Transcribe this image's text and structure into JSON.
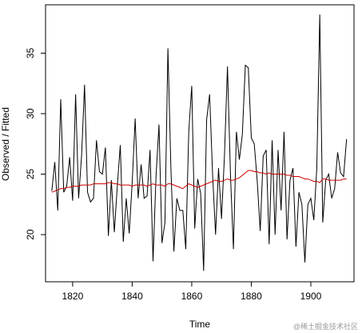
{
  "chart_data": {
    "type": "line",
    "xlabel": "Time",
    "ylabel": "Observed / Fitted",
    "watermark": "@稀土掘金技术社区",
    "x": [
      1813,
      1814,
      1815,
      1816,
      1817,
      1818,
      1819,
      1820,
      1821,
      1822,
      1823,
      1824,
      1825,
      1826,
      1827,
      1828,
      1829,
      1830,
      1831,
      1832,
      1833,
      1834,
      1835,
      1836,
      1837,
      1838,
      1839,
      1840,
      1841,
      1842,
      1843,
      1844,
      1845,
      1846,
      1847,
      1848,
      1849,
      1850,
      1851,
      1852,
      1853,
      1854,
      1855,
      1856,
      1857,
      1858,
      1859,
      1860,
      1861,
      1862,
      1863,
      1864,
      1865,
      1866,
      1867,
      1868,
      1869,
      1870,
      1871,
      1872,
      1873,
      1874,
      1875,
      1876,
      1877,
      1878,
      1879,
      1880,
      1881,
      1882,
      1883,
      1884,
      1885,
      1886,
      1887,
      1888,
      1889,
      1890,
      1891,
      1892,
      1893,
      1894,
      1895,
      1896,
      1897,
      1898,
      1899,
      1900,
      1901,
      1902,
      1903,
      1904,
      1905,
      1906,
      1907,
      1908,
      1909,
      1910,
      1911,
      1912
    ],
    "series": [
      {
        "color": "#000000",
        "values": [
          23.6,
          26.0,
          22.0,
          31.2,
          23.5,
          24.0,
          26.4,
          22.8,
          31.6,
          23.0,
          26.5,
          32.4,
          23.5,
          22.7,
          23.0,
          27.8,
          25.2,
          25.0,
          27.2,
          19.9,
          24.5,
          20.2,
          24.0,
          27.4,
          19.4,
          23.0,
          20.1,
          24.3,
          29.6,
          23.0,
          25.8,
          23.0,
          23.2,
          27.0,
          17.8,
          24.8,
          29.1,
          19.3,
          21.0,
          35.4,
          25.5,
          18.6,
          23.0,
          22.0,
          22.0,
          18.8,
          28.5,
          32.3,
          20.5,
          24.6,
          23.4,
          17.0,
          29.5,
          31.6,
          25.0,
          20.0,
          25.5,
          21.3,
          26.6,
          33.9,
          25.0,
          18.8,
          28.5,
          26.2,
          28.3,
          34.0,
          33.8,
          28.0,
          27.5,
          24.4,
          20.3,
          26.5,
          27.0,
          19.2,
          27.8,
          20.0,
          27.0,
          22.0,
          28.5,
          19.6,
          24.5,
          25.5,
          19.0,
          23.5,
          22.5,
          17.7,
          22.5,
          23.0,
          21.2,
          25.5,
          38.2,
          21.0,
          24.5,
          25.0,
          23.0,
          23.8,
          26.8,
          25.1,
          24.8,
          27.9
        ]
      },
      {
        "color": "#cc0000",
        "values": [
          23.5,
          23.6,
          23.7,
          23.8,
          23.8,
          23.9,
          23.9,
          24.0,
          24.0,
          24.0,
          24.1,
          24.1,
          24.1,
          24.1,
          24.2,
          24.2,
          24.2,
          24.2,
          24.2,
          24.3,
          24.3,
          24.2,
          24.2,
          24.1,
          24.1,
          24.1,
          24.1,
          24.0,
          24.1,
          24.1,
          24.1,
          24.1,
          24.0,
          24.1,
          24.2,
          24.1,
          24.1,
          24.1,
          24.0,
          24.2,
          24.2,
          24.1,
          24.0,
          23.9,
          23.8,
          24.0,
          24.2,
          24.1,
          24.0,
          23.9,
          24.0,
          24.1,
          24.2,
          24.3,
          24.4,
          24.5,
          24.4,
          24.4,
          24.5,
          24.6,
          24.5,
          24.5,
          24.6,
          24.7,
          24.9,
          25.1,
          25.3,
          25.3,
          25.2,
          25.2,
          25.1,
          25.1,
          25.0,
          25.1,
          25.0,
          25.0,
          25.0,
          25.0,
          25.0,
          24.9,
          24.9,
          24.8,
          24.8,
          24.8,
          24.7,
          24.6,
          24.6,
          24.5,
          24.4,
          24.4,
          24.3,
          24.6,
          24.6,
          24.5,
          24.5,
          24.5,
          24.5,
          24.5,
          24.6,
          24.6
        ]
      }
    ],
    "xlim": [
      1810.9,
      1914.5
    ],
    "ylim": [
      16.1,
      39.0
    ],
    "xticks": [
      1820,
      1840,
      1860,
      1880,
      1900
    ],
    "yticks": [
      20,
      25,
      30,
      35
    ]
  }
}
